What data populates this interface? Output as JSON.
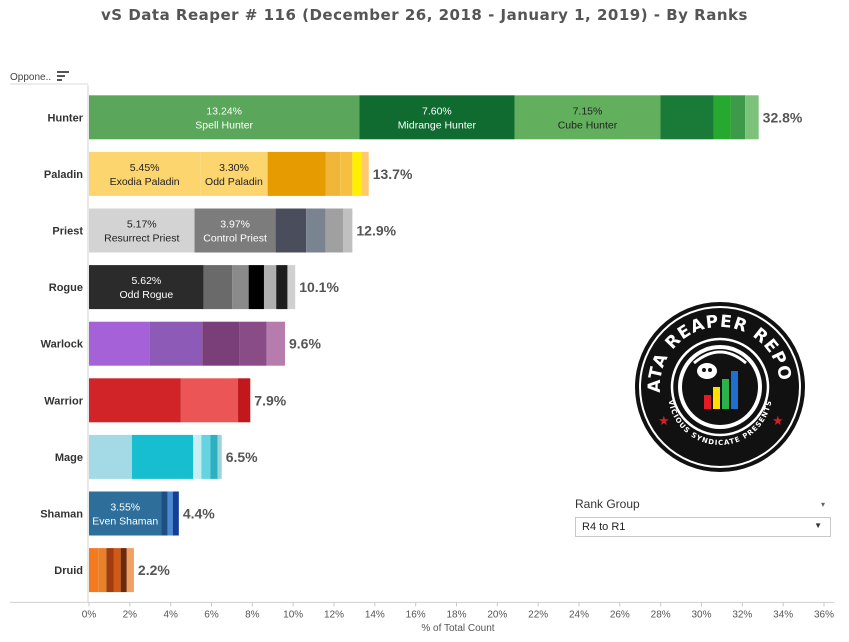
{
  "header": {
    "title": "vS Data Reaper #  116 (December 26, 2018 - January 1, 2019) - By Ranks",
    "opponent_label": "Oppone.."
  },
  "chart_data": {
    "type": "bar",
    "orientation": "horizontal",
    "stacked": true,
    "xlabel": "% of Total Count",
    "xlim": [
      0,
      36
    ],
    "x_ticks": [
      "0%",
      "2%",
      "4%",
      "6%",
      "8%",
      "10%",
      "12%",
      "14%",
      "16%",
      "18%",
      "20%",
      "22%",
      "24%",
      "26%",
      "28%",
      "30%",
      "32%",
      "34%",
      "36%"
    ],
    "grid": false,
    "categories": [
      "Hunter",
      "Paladin",
      "Priest",
      "Rogue",
      "Warlock",
      "Warrior",
      "Mage",
      "Shaman",
      "Druid"
    ],
    "totals": [
      "32.8%",
      "13.7%",
      "12.9%",
      "10.1%",
      "9.6%",
      "7.9%",
      "6.5%",
      "4.4%",
      "2.2%"
    ],
    "bars": [
      {
        "class": "Hunter",
        "total": 32.8,
        "segments": [
          {
            "value": 13.24,
            "color": "#5aa65a",
            "pct": "13.24%",
            "label": "Spell Hunter"
          },
          {
            "value": 7.6,
            "color": "#0f6b2f",
            "pct": "7.60%",
            "label": "Midrange Hunter"
          },
          {
            "value": 7.15,
            "color": "#62b05e",
            "pct": "7.15%",
            "label": "Cube Hunter"
          },
          {
            "value": 2.6,
            "color": "#1a7a38"
          },
          {
            "value": 0.85,
            "color": "#27a82f"
          },
          {
            "value": 0.7,
            "color": "#3c9a4a"
          },
          {
            "value": 0.66,
            "color": "#7cc27a"
          }
        ]
      },
      {
        "class": "Paladin",
        "total": 13.7,
        "segments": [
          {
            "value": 5.45,
            "color": "#fcd56e",
            "pct": "5.45%",
            "label": "Exodia Paladin"
          },
          {
            "value": 3.3,
            "color": "#fcd56e",
            "pct": "3.30%",
            "label": "Odd Paladin"
          },
          {
            "value": 2.85,
            "color": "#e69b00"
          },
          {
            "value": 0.7,
            "color": "#f0b63a"
          },
          {
            "value": 0.6,
            "color": "#f5c042"
          },
          {
            "value": 0.45,
            "color": "#fff000"
          },
          {
            "value": 0.35,
            "color": "#ffc86e"
          }
        ]
      },
      {
        "class": "Priest",
        "total": 12.9,
        "segments": [
          {
            "value": 5.17,
            "color": "#d3d3d3",
            "pct": "5.17%",
            "label": "Resurrect Priest"
          },
          {
            "value": 3.97,
            "color": "#7c7c7c",
            "pct": "3.97%",
            "label": "Control Priest"
          },
          {
            "value": 1.5,
            "color": "#4a4e5c"
          },
          {
            "value": 0.95,
            "color": "#7a8390"
          },
          {
            "value": 0.85,
            "color": "#a0a0a0"
          },
          {
            "value": 0.46,
            "color": "#c0c0c0"
          }
        ]
      },
      {
        "class": "Rogue",
        "total": 10.1,
        "segments": [
          {
            "value": 5.62,
            "color": "#2b2b2b",
            "pct": "5.62%",
            "label": "Odd Rogue"
          },
          {
            "value": 1.4,
            "color": "#6a6a6a"
          },
          {
            "value": 0.8,
            "color": "#8a8a8a"
          },
          {
            "value": 0.75,
            "color": "#000000"
          },
          {
            "value": 0.6,
            "color": "#b0b0b0"
          },
          {
            "value": 0.55,
            "color": "#1e1e1e"
          },
          {
            "value": 0.38,
            "color": "#d0d0d0"
          }
        ]
      },
      {
        "class": "Warlock",
        "total": 9.6,
        "segments": [
          {
            "value": 2.95,
            "color": "#a562d8"
          },
          {
            "value": 2.6,
            "color": "#8d5ab8"
          },
          {
            "value": 1.8,
            "color": "#7a3f78"
          },
          {
            "value": 1.35,
            "color": "#8a4c86"
          },
          {
            "value": 0.9,
            "color": "#b77cae"
          }
        ]
      },
      {
        "class": "Warrior",
        "total": 7.9,
        "segments": [
          {
            "value": 4.5,
            "color": "#d12428"
          },
          {
            "value": 2.8,
            "color": "#ec5555"
          },
          {
            "value": 0.6,
            "color": "#c0181c"
          }
        ]
      },
      {
        "class": "Mage",
        "total": 6.5,
        "segments": [
          {
            "value": 2.1,
            "color": "#a3dae5"
          },
          {
            "value": 3.0,
            "color": "#17becf"
          },
          {
            "value": 0.4,
            "color": "#c6eef3"
          },
          {
            "value": 0.45,
            "color": "#66d4e0"
          },
          {
            "value": 0.35,
            "color": "#2fb0c0"
          },
          {
            "value": 0.2,
            "color": "#9ad4dc"
          }
        ]
      },
      {
        "class": "Shaman",
        "total": 4.4,
        "segments": [
          {
            "value": 3.55,
            "color": "#2e6e9b",
            "pct": "3.55%",
            "label": "Even Shaman"
          },
          {
            "value": 0.3,
            "color": "#1f4e80"
          },
          {
            "value": 0.25,
            "color": "#4a8ad0"
          },
          {
            "value": 0.3,
            "color": "#123e9a"
          }
        ]
      },
      {
        "class": "Druid",
        "total": 2.2,
        "segments": [
          {
            "value": 0.45,
            "color": "#f47a20"
          },
          {
            "value": 0.4,
            "color": "#e8822a"
          },
          {
            "value": 0.35,
            "color": "#a03c10"
          },
          {
            "value": 0.35,
            "color": "#d05a16"
          },
          {
            "value": 0.3,
            "color": "#6b2a0a"
          },
          {
            "value": 0.35,
            "color": "#f0a060"
          }
        ]
      }
    ]
  },
  "rank_filter": {
    "title": "Rank Group",
    "selected": "R4 to R1",
    "header_chevron": "▾",
    "dropdown_arrow": "▼"
  },
  "logo": {
    "text_top": "DATA REAPER REPORT",
    "text_bottom": "VICIOUS SYNDICATE PRESENTS",
    "colors": {
      "background": "#111111",
      "ring": "#ffffff",
      "star": "#d41f26"
    }
  }
}
